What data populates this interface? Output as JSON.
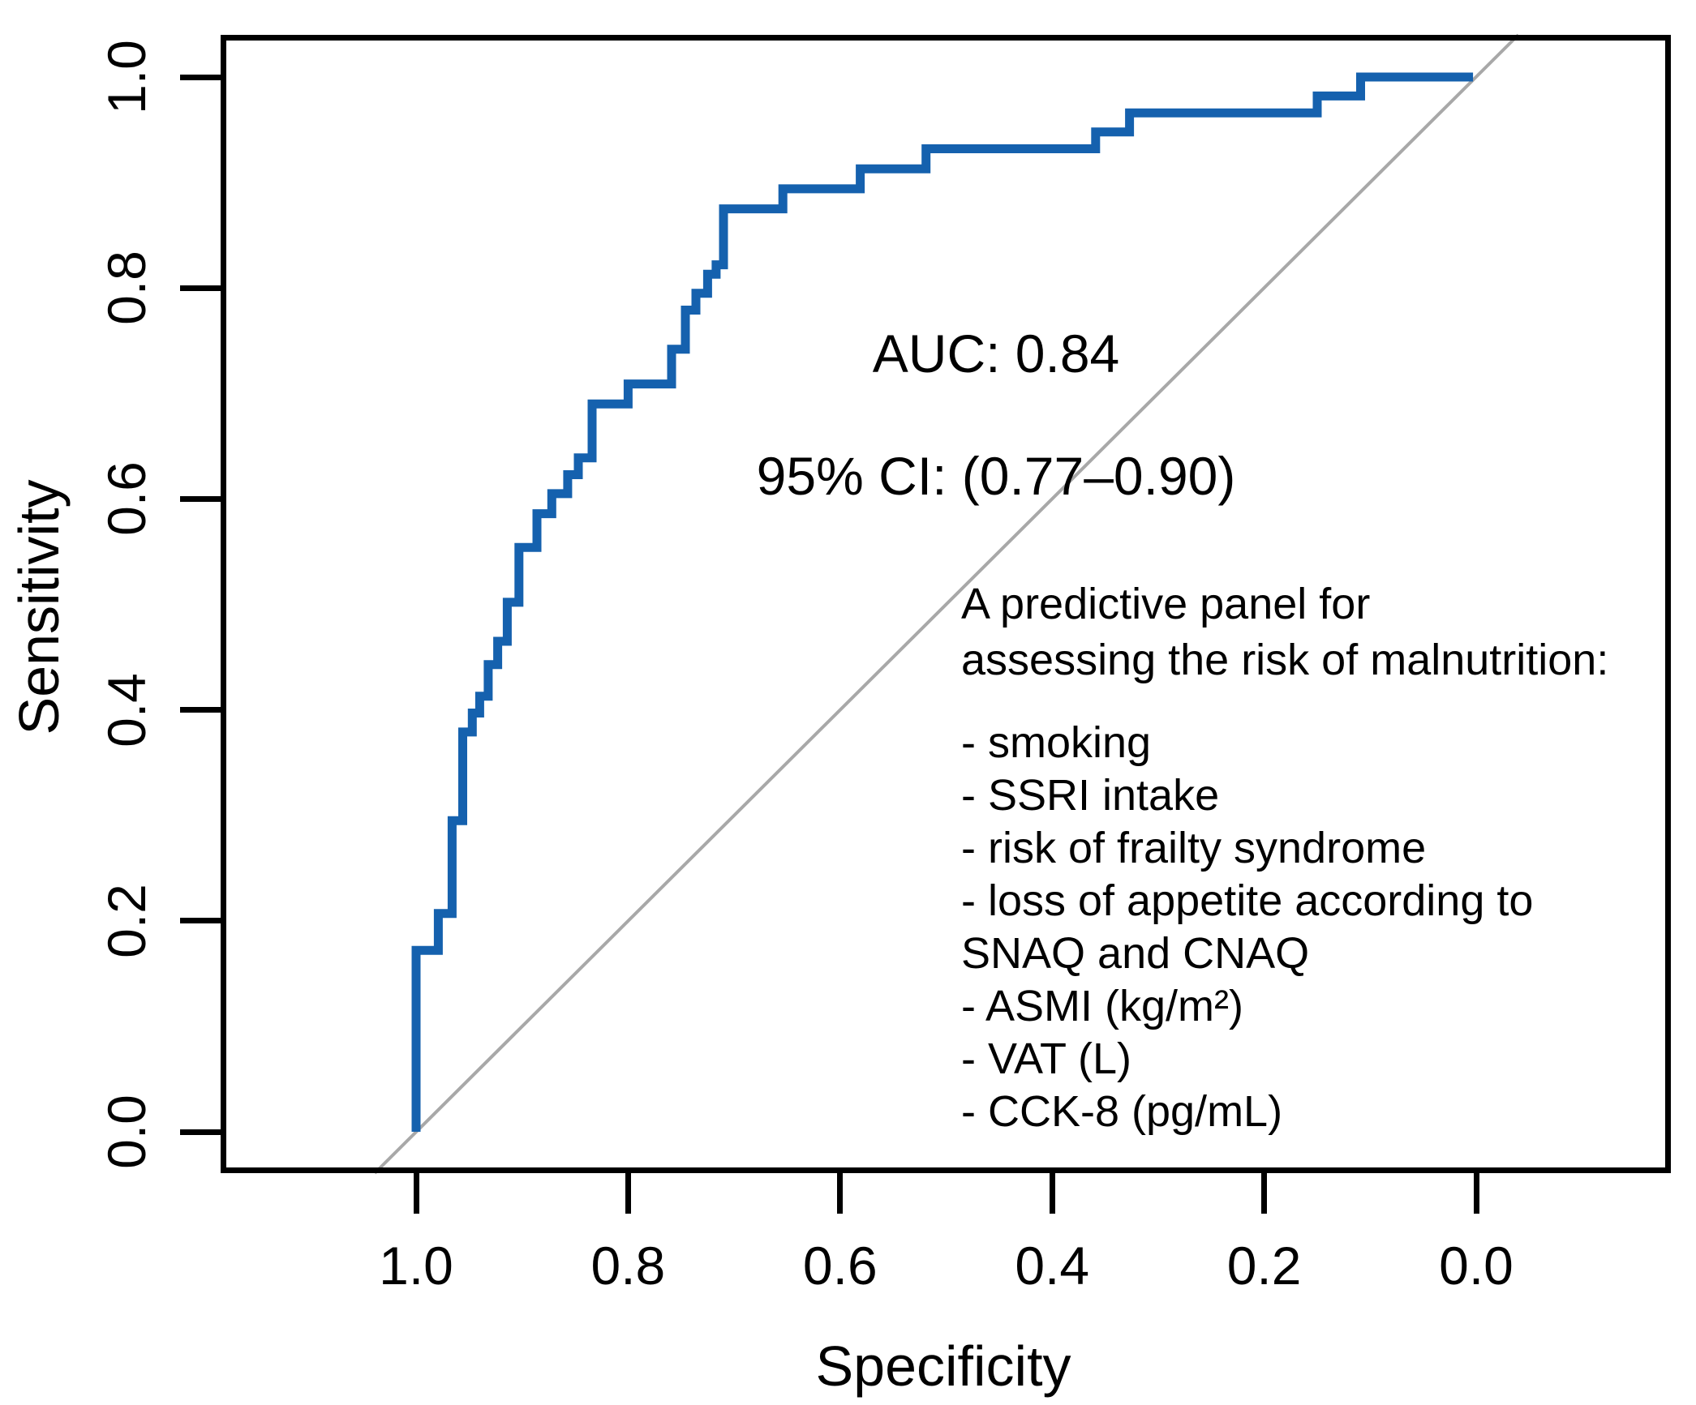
{
  "figure": {
    "kind": "ROC curve plot",
    "background_color": "#ffffff"
  },
  "axes": {
    "x": {
      "title": "Specificity",
      "tick_labels": [
        "1.0",
        "0.8",
        "0.6",
        "0.4",
        "0.2",
        "0.0"
      ],
      "tick_values": [
        1.0,
        0.8,
        0.6,
        0.4,
        0.2,
        0.0
      ],
      "direction": "reversed"
    },
    "y": {
      "title": "Sensitivity",
      "tick_labels": [
        "0.0",
        "0.2",
        "0.4",
        "0.6",
        "0.8",
        "1.0"
      ],
      "tick_values": [
        0.0,
        0.2,
        0.4,
        0.6,
        0.8,
        1.0
      ]
    }
  },
  "annotations": {
    "auc_text": "AUC: 0.84",
    "ci_text": "95% CI: (0.77–0.90)",
    "panel_header_lines": [
      "A predictive panel for",
      "assessing the risk of malnutrition:"
    ],
    "panel_items": [
      "- smoking",
      "- SSRI intake",
      "- risk of frailty syndrome",
      "- loss of appetite according to",
      "SNAQ and CNAQ",
      "- ASMI (kg/m²)",
      "- VAT (L)",
      "- CCK-8 (pg/mL)"
    ]
  },
  "colors": {
    "roc_curve": "#1561ae",
    "diagonal_reference": "#a8a8a8",
    "axis": "#000000",
    "text": "#000000"
  },
  "chart_data": {
    "type": "line",
    "subtype": "roc_step_curve",
    "title": "",
    "xlabel": "Specificity",
    "ylabel": "Sensitivity",
    "xlim": [
      1.0,
      0.0
    ],
    "ylim": [
      0.0,
      1.0
    ],
    "x_ticks": [
      1.0,
      0.8,
      0.6,
      0.4,
      0.2,
      0.0
    ],
    "y_ticks": [
      0.0,
      0.2,
      0.4,
      0.6,
      0.8,
      1.0
    ],
    "grid": false,
    "auc": 0.84,
    "ci_95": [
      0.77,
      0.9
    ],
    "diagonal_reference": true,
    "series": [
      {
        "name": "ROC curve",
        "points_spec_sens": [
          [
            1.0,
            0.0
          ],
          [
            1.0,
            0.172
          ],
          [
            0.979,
            0.172
          ],
          [
            0.979,
            0.207
          ],
          [
            0.966,
            0.207
          ],
          [
            0.966,
            0.295
          ],
          [
            0.956,
            0.295
          ],
          [
            0.956,
            0.379
          ],
          [
            0.947,
            0.379
          ],
          [
            0.947,
            0.397
          ],
          [
            0.94,
            0.397
          ],
          [
            0.94,
            0.413
          ],
          [
            0.932,
            0.413
          ],
          [
            0.932,
            0.443
          ],
          [
            0.923,
            0.443
          ],
          [
            0.923,
            0.465
          ],
          [
            0.914,
            0.465
          ],
          [
            0.914,
            0.502
          ],
          [
            0.903,
            0.502
          ],
          [
            0.903,
            0.554
          ],
          [
            0.886,
            0.554
          ],
          [
            0.886,
            0.586
          ],
          [
            0.872,
            0.586
          ],
          [
            0.872,
            0.605
          ],
          [
            0.857,
            0.605
          ],
          [
            0.857,
            0.623
          ],
          [
            0.847,
            0.623
          ],
          [
            0.847,
            0.639
          ],
          [
            0.834,
            0.639
          ],
          [
            0.834,
            0.69
          ],
          [
            0.8,
            0.69
          ],
          [
            0.8,
            0.709
          ],
          [
            0.759,
            0.709
          ],
          [
            0.759,
            0.742
          ],
          [
            0.746,
            0.742
          ],
          [
            0.746,
            0.779
          ],
          [
            0.736,
            0.779
          ],
          [
            0.736,
            0.795
          ],
          [
            0.725,
            0.795
          ],
          [
            0.725,
            0.813
          ],
          [
            0.717,
            0.813
          ],
          [
            0.717,
            0.822
          ],
          [
            0.71,
            0.822
          ],
          [
            0.71,
            0.875
          ],
          [
            0.654,
            0.875
          ],
          [
            0.654,
            0.894
          ],
          [
            0.581,
            0.894
          ],
          [
            0.581,
            0.913
          ],
          [
            0.519,
            0.913
          ],
          [
            0.519,
            0.932
          ],
          [
            0.359,
            0.932
          ],
          [
            0.359,
            0.948
          ],
          [
            0.327,
            0.948
          ],
          [
            0.327,
            0.966
          ],
          [
            0.15,
            0.966
          ],
          [
            0.15,
            0.982
          ],
          [
            0.109,
            0.982
          ],
          [
            0.109,
            1.0
          ],
          [
            0.003,
            1.0
          ]
        ]
      }
    ]
  }
}
